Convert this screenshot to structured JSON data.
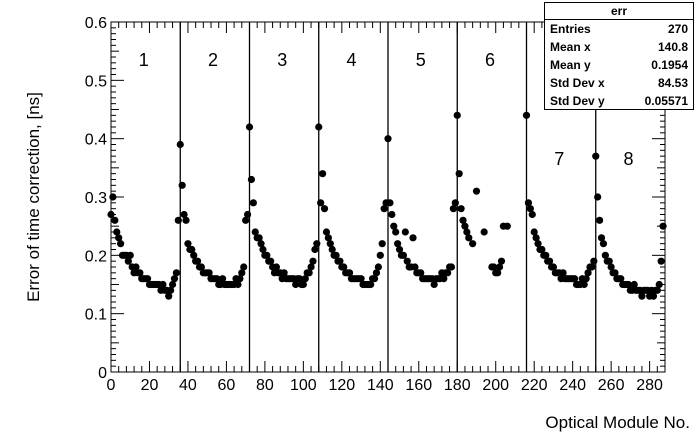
{
  "chart_data": {
    "type": "scatter",
    "title": "",
    "xlabel": "Optical Module No.",
    "ylabel": "Error of time correction, [ns]",
    "xlim": [
      0,
      288
    ],
    "ylim": [
      0,
      0.6
    ],
    "x_ticks": [
      "0",
      "20",
      "40",
      "60",
      "80",
      "100",
      "120",
      "140",
      "160",
      "180",
      "200",
      "220",
      "240",
      "260",
      "280"
    ],
    "y_ticks": [
      "0",
      "0.1",
      "0.2",
      "0.3",
      "0.4",
      "0.5",
      "0.6"
    ],
    "grid": false,
    "dividers": [
      36,
      72,
      108,
      144,
      180,
      216,
      252
    ],
    "sections": [
      {
        "label": "1",
        "x": 17,
        "y": 0.535
      },
      {
        "label": "2",
        "x": 53,
        "y": 0.535
      },
      {
        "label": "3",
        "x": 89,
        "y": 0.535
      },
      {
        "label": "4",
        "x": 125,
        "y": 0.535
      },
      {
        "label": "5",
        "x": 161,
        "y": 0.535
      },
      {
        "label": "6",
        "x": 197,
        "y": 0.535
      },
      {
        "label": "7",
        "x": 233,
        "y": 0.365
      },
      {
        "label": "8",
        "x": 269,
        "y": 0.365
      }
    ],
    "stats_box": {
      "title": "err",
      "rows": [
        {
          "label": "Entries",
          "value": "270"
        },
        {
          "label": "Mean x",
          "value": "140.8"
        },
        {
          "label": "Mean y",
          "value": "0.1954"
        },
        {
          "label": "Std Dev x",
          "value": "84.53"
        },
        {
          "label": "Std Dev y",
          "value": "0.05571"
        }
      ]
    },
    "series": [
      {
        "x": [
          0,
          1,
          2,
          3,
          4,
          5,
          6,
          7,
          8,
          9,
          10,
          11,
          12,
          13,
          14,
          15,
          16,
          17,
          18,
          19,
          20,
          21,
          22,
          23,
          24,
          25,
          26,
          27,
          28,
          29,
          30,
          31,
          32,
          33,
          34,
          35,
          36,
          37,
          38,
          39,
          40,
          41,
          42,
          43,
          44,
          45,
          46,
          47,
          48,
          49,
          50,
          51,
          52,
          53,
          54,
          55,
          56,
          57,
          58,
          59,
          60,
          61,
          62,
          63,
          64,
          65,
          66,
          67,
          68,
          69,
          70,
          71,
          72,
          73,
          74,
          75,
          76,
          77,
          78,
          79,
          80,
          81,
          82,
          83,
          84,
          85,
          86,
          87,
          88,
          89,
          90,
          91,
          92,
          93,
          94,
          95,
          96,
          97,
          98,
          99,
          100,
          101,
          102,
          103,
          104,
          105,
          106,
          107,
          108,
          109,
          110,
          111,
          112,
          113,
          114,
          115,
          116,
          117,
          118,
          119,
          120,
          121,
          122,
          123,
          124,
          125,
          126,
          127,
          128,
          129,
          130,
          131,
          132,
          133,
          134,
          135,
          136,
          137,
          138,
          139,
          140,
          141,
          142,
          143,
          144,
          145,
          146,
          147,
          148,
          149,
          150,
          151,
          152,
          153,
          154,
          155,
          156,
          157,
          158,
          159,
          160,
          161,
          162,
          163,
          164,
          165,
          166,
          167,
          168,
          169,
          170,
          171,
          172,
          173,
          174,
          175,
          176,
          177,
          178,
          179,
          180,
          181,
          182,
          183,
          184,
          185,
          186,
          188,
          190,
          194,
          198,
          199,
          200,
          201,
          202,
          203,
          204,
          206,
          216,
          217,
          218,
          219,
          220,
          221,
          222,
          223,
          224,
          225,
          226,
          227,
          228,
          229,
          230,
          231,
          232,
          233,
          234,
          235,
          236,
          237,
          238,
          239,
          240,
          241,
          242,
          243,
          244,
          245,
          246,
          247,
          248,
          249,
          250,
          251,
          252,
          253,
          254,
          255,
          256,
          257,
          258,
          259,
          260,
          261,
          262,
          263,
          264,
          265,
          266,
          267,
          268,
          269,
          270,
          271,
          272,
          273,
          274,
          275,
          276,
          277,
          278,
          279,
          280,
          281,
          282,
          283,
          284,
          285,
          286,
          287
        ],
        "y": [
          0.27,
          0.3,
          0.26,
          0.24,
          0.23,
          0.22,
          0.2,
          0.2,
          0.2,
          0.19,
          0.2,
          0.18,
          0.17,
          0.18,
          0.17,
          0.17,
          0.16,
          0.16,
          0.16,
          0.16,
          0.15,
          0.15,
          0.15,
          0.15,
          0.15,
          0.15,
          0.14,
          0.15,
          0.14,
          0.14,
          0.13,
          0.14,
          0.15,
          0.16,
          0.17,
          0.26,
          0.39,
          0.32,
          0.27,
          0.26,
          0.22,
          0.21,
          0.21,
          0.2,
          0.19,
          0.19,
          0.18,
          0.18,
          0.17,
          0.17,
          0.17,
          0.17,
          0.16,
          0.16,
          0.16,
          0.16,
          0.15,
          0.15,
          0.16,
          0.15,
          0.15,
          0.15,
          0.15,
          0.15,
          0.15,
          0.16,
          0.15,
          0.16,
          0.17,
          0.18,
          0.26,
          0.27,
          0.42,
          0.33,
          0.29,
          0.24,
          0.23,
          0.23,
          0.22,
          0.21,
          0.2,
          0.2,
          0.19,
          0.19,
          0.18,
          0.17,
          0.18,
          0.17,
          0.17,
          0.16,
          0.17,
          0.16,
          0.16,
          0.16,
          0.16,
          0.16,
          0.15,
          0.16,
          0.16,
          0.15,
          0.15,
          0.16,
          0.17,
          0.17,
          0.18,
          0.19,
          0.21,
          0.22,
          0.42,
          0.29,
          0.34,
          0.28,
          0.24,
          0.23,
          0.22,
          0.21,
          0.2,
          0.2,
          0.19,
          0.19,
          0.18,
          0.18,
          0.17,
          0.17,
          0.17,
          0.16,
          0.16,
          0.16,
          0.16,
          0.16,
          0.16,
          0.15,
          0.15,
          0.15,
          0.15,
          0.15,
          0.16,
          0.16,
          0.17,
          0.18,
          0.2,
          0.22,
          0.28,
          0.29,
          0.4,
          0.29,
          0.27,
          0.25,
          0.24,
          0.22,
          0.21,
          0.2,
          0.2,
          0.24,
          0.19,
          0.18,
          0.18,
          0.23,
          0.18,
          0.17,
          0.17,
          0.17,
          0.16,
          0.16,
          0.16,
          0.16,
          0.16,
          0.16,
          0.15,
          0.16,
          0.16,
          0.16,
          0.17,
          0.16,
          0.17,
          0.17,
          0.18,
          0.18,
          0.28,
          0.29,
          0.44,
          0.34,
          0.28,
          0.26,
          0.25,
          0.24,
          0.23,
          0.22,
          0.31,
          0.24,
          0.18,
          0.18,
          0.17,
          0.17,
          0.18,
          0.19,
          0.25,
          0.25,
          0.44,
          0.29,
          0.28,
          0.27,
          0.24,
          0.23,
          0.22,
          0.21,
          0.21,
          0.2,
          0.2,
          0.19,
          0.19,
          0.18,
          0.18,
          0.17,
          0.17,
          0.17,
          0.16,
          0.17,
          0.16,
          0.16,
          0.16,
          0.16,
          0.16,
          0.16,
          0.15,
          0.15,
          0.15,
          0.16,
          0.15,
          0.16,
          0.17,
          0.18,
          0.18,
          0.19,
          0.37,
          0.3,
          0.26,
          0.23,
          0.22,
          0.2,
          0.19,
          0.19,
          0.18,
          0.17,
          0.17,
          0.16,
          0.16,
          0.16,
          0.15,
          0.15,
          0.15,
          0.15,
          0.14,
          0.14,
          0.15,
          0.14,
          0.14,
          0.14,
          0.13,
          0.14,
          0.14,
          0.14,
          0.13,
          0.14,
          0.13,
          0.14,
          0.14,
          0.15,
          0.19,
          0.25
        ]
      }
    ]
  }
}
